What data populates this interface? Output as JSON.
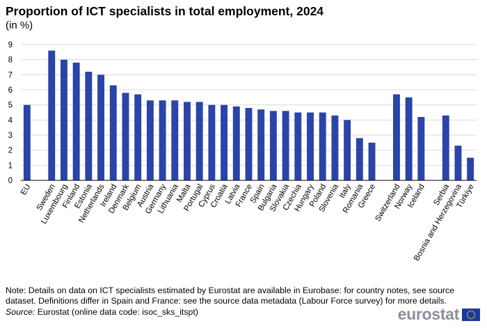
{
  "title": "Proportion of ICT specialists in total employment, 2024",
  "subtitle": "(in %)",
  "note": "Note: Details on data on ICT specialists estimated by Eurostat are available in Eurobase: for country notes, see source dataset. Definitions differ in Spain and France: see the source data metadata (Labour Force survey) for more details.",
  "source_label": "Source:",
  "source_text": " Eurostat (online data code: isoc_sks_itspt)",
  "logo_text": "eurostat",
  "colors": {
    "bar": "#2a44a8",
    "grid": "#d9d9d9",
    "axis": "#000000",
    "flag_blue": "#1a3a9c",
    "flag_star": "#f5d400"
  },
  "chart_data": {
    "type": "bar",
    "title": "Proportion of ICT specialists in total employment, 2024",
    "subtitle": "(in %)",
    "xlabel": "",
    "ylabel": "",
    "ylim": [
      0,
      9
    ],
    "yticks": [
      0,
      1,
      2,
      3,
      4,
      5,
      6,
      7,
      8,
      9
    ],
    "grid": true,
    "categories": [
      "EU",
      "",
      "Sweden",
      "Luxembourg",
      "Finland",
      "Estonia",
      "Netherlands",
      "Ireland",
      "Denmark",
      "Belgium",
      "Austria",
      "Germany",
      "Lithuania",
      "Malta",
      "Portugal",
      "Cyprus",
      "Croatia",
      "Latvia",
      "France",
      "Spain",
      "Bulgaria",
      "Slovakia",
      "Czechia",
      "Hungary",
      "Poland",
      "Slovenia",
      "Italy",
      "Romania",
      "Greece",
      "",
      "Switzerland",
      "Norway",
      "Iceland",
      "",
      "Serbia",
      "Bosnia and Herzegovina",
      "Türkiye"
    ],
    "values": [
      5.0,
      null,
      8.6,
      8.0,
      7.8,
      7.2,
      7.0,
      6.3,
      5.8,
      5.7,
      5.3,
      5.3,
      5.3,
      5.2,
      5.2,
      5.0,
      5.0,
      4.9,
      4.8,
      4.7,
      4.6,
      4.6,
      4.5,
      4.5,
      4.5,
      4.3,
      4.0,
      2.8,
      2.5,
      null,
      5.7,
      5.5,
      4.2,
      null,
      4.3,
      2.3,
      1.5
    ]
  }
}
